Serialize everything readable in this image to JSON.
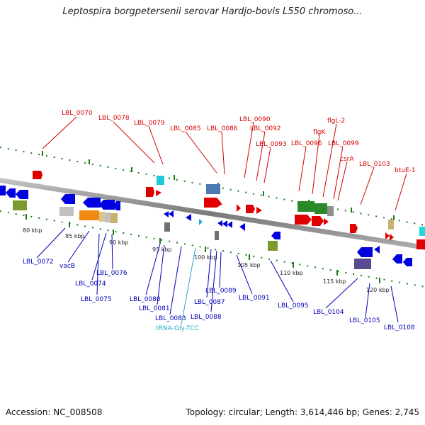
{
  "title": "Leptospira borgpetersenii serovar Hardjo-bovis L550 chromoso...",
  "accession": "Accession: NC_008508",
  "summary": "Topology: circular; Length: 3,614,446 bp; Genes: 2,745",
  "colors": {
    "forward_gene": "#e00000",
    "reverse_gene": "#0000e0",
    "forward_label": "#d40000",
    "reverse_label": "#0000b4",
    "trna_label": "#22a8c8",
    "backbone": "#808080",
    "tick": "#1a7a1a"
  },
  "kbp_ticks": [
    "80 kbp",
    "85 kbp",
    "90 kbp",
    "95 kbp",
    "100 kbp",
    "105 kbp",
    "110 kbp",
    "115 kbp",
    "120 kbp"
  ],
  "top_labels": [
    "LBL_0070",
    "LBL_0078",
    "LBL_0079",
    "LBL_0085",
    "LBL_0086",
    "LBL_0090",
    "LBL_0092",
    "LBL_0093",
    "LBL_0096",
    "flgK",
    "flgL-2",
    "LBL_0099",
    "csrA",
    "LBL_0103",
    "btuE-1"
  ],
  "bottom_labels": [
    "LBL_0072",
    "vacB",
    "LBL_0074",
    "LBL_0075",
    "LBL_0076",
    "LBL_0080",
    "LBL_0081",
    "LBL_0083",
    "tRNA-Gly-TCC",
    "LBL_0087",
    "LBL_0088",
    "LBL_0089",
    "LBL_0091",
    "LBL_0095",
    "LBL_0104",
    "LBL_0105",
    "LBL_0108"
  ]
}
